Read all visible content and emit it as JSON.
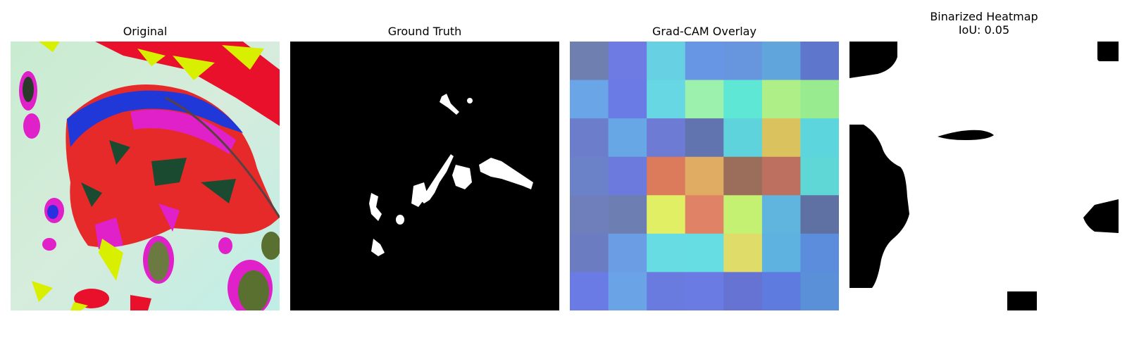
{
  "panels": {
    "original": {
      "title": "Original"
    },
    "ground_truth": {
      "title": "Ground Truth"
    },
    "gradcam": {
      "title": "Grad-CAM Overlay",
      "grid": [
        [
          "#6f7fb0",
          "#6d7be3",
          "#67d1e3",
          "#6796e5",
          "#6796de",
          "#60a5dc",
          "#5e76cc"
        ],
        [
          "#69a5e7",
          "#6b7be6",
          "#67d7e4",
          "#9cf2ac",
          "#5fe7d6",
          "#aef087",
          "#98ec8f"
        ],
        [
          "#6c7dcc",
          "#68a7e5",
          "#6e7bd5",
          "#6274b0",
          "#5ed3db",
          "#dac35f",
          "#5cd5dc"
        ],
        [
          "#6b81c8",
          "#6c7ade",
          "#dc7a5c",
          "#e0ab62",
          "#9a6e5b",
          "#bd7060",
          "#5ed7d6"
        ],
        [
          "#6f7fbb",
          "#6d7eb2",
          "#e0ef64",
          "#e08265",
          "#c4f172",
          "#5fb5dd",
          "#5e71a2"
        ],
        [
          "#6c7cc1",
          "#6a9de3",
          "#67dce3",
          "#66dde3",
          "#e0dc6a",
          "#5eb2df",
          "#5b8ddc"
        ],
        [
          "#6b7be6",
          "#6aa4e6",
          "#6a7be0",
          "#6b7be4",
          "#6673d2",
          "#5e7bdf",
          "#5a90d8"
        ]
      ]
    },
    "binarized": {
      "title": "Binarized Heatmap",
      "iou_label": "IoU: 0.05"
    }
  }
}
